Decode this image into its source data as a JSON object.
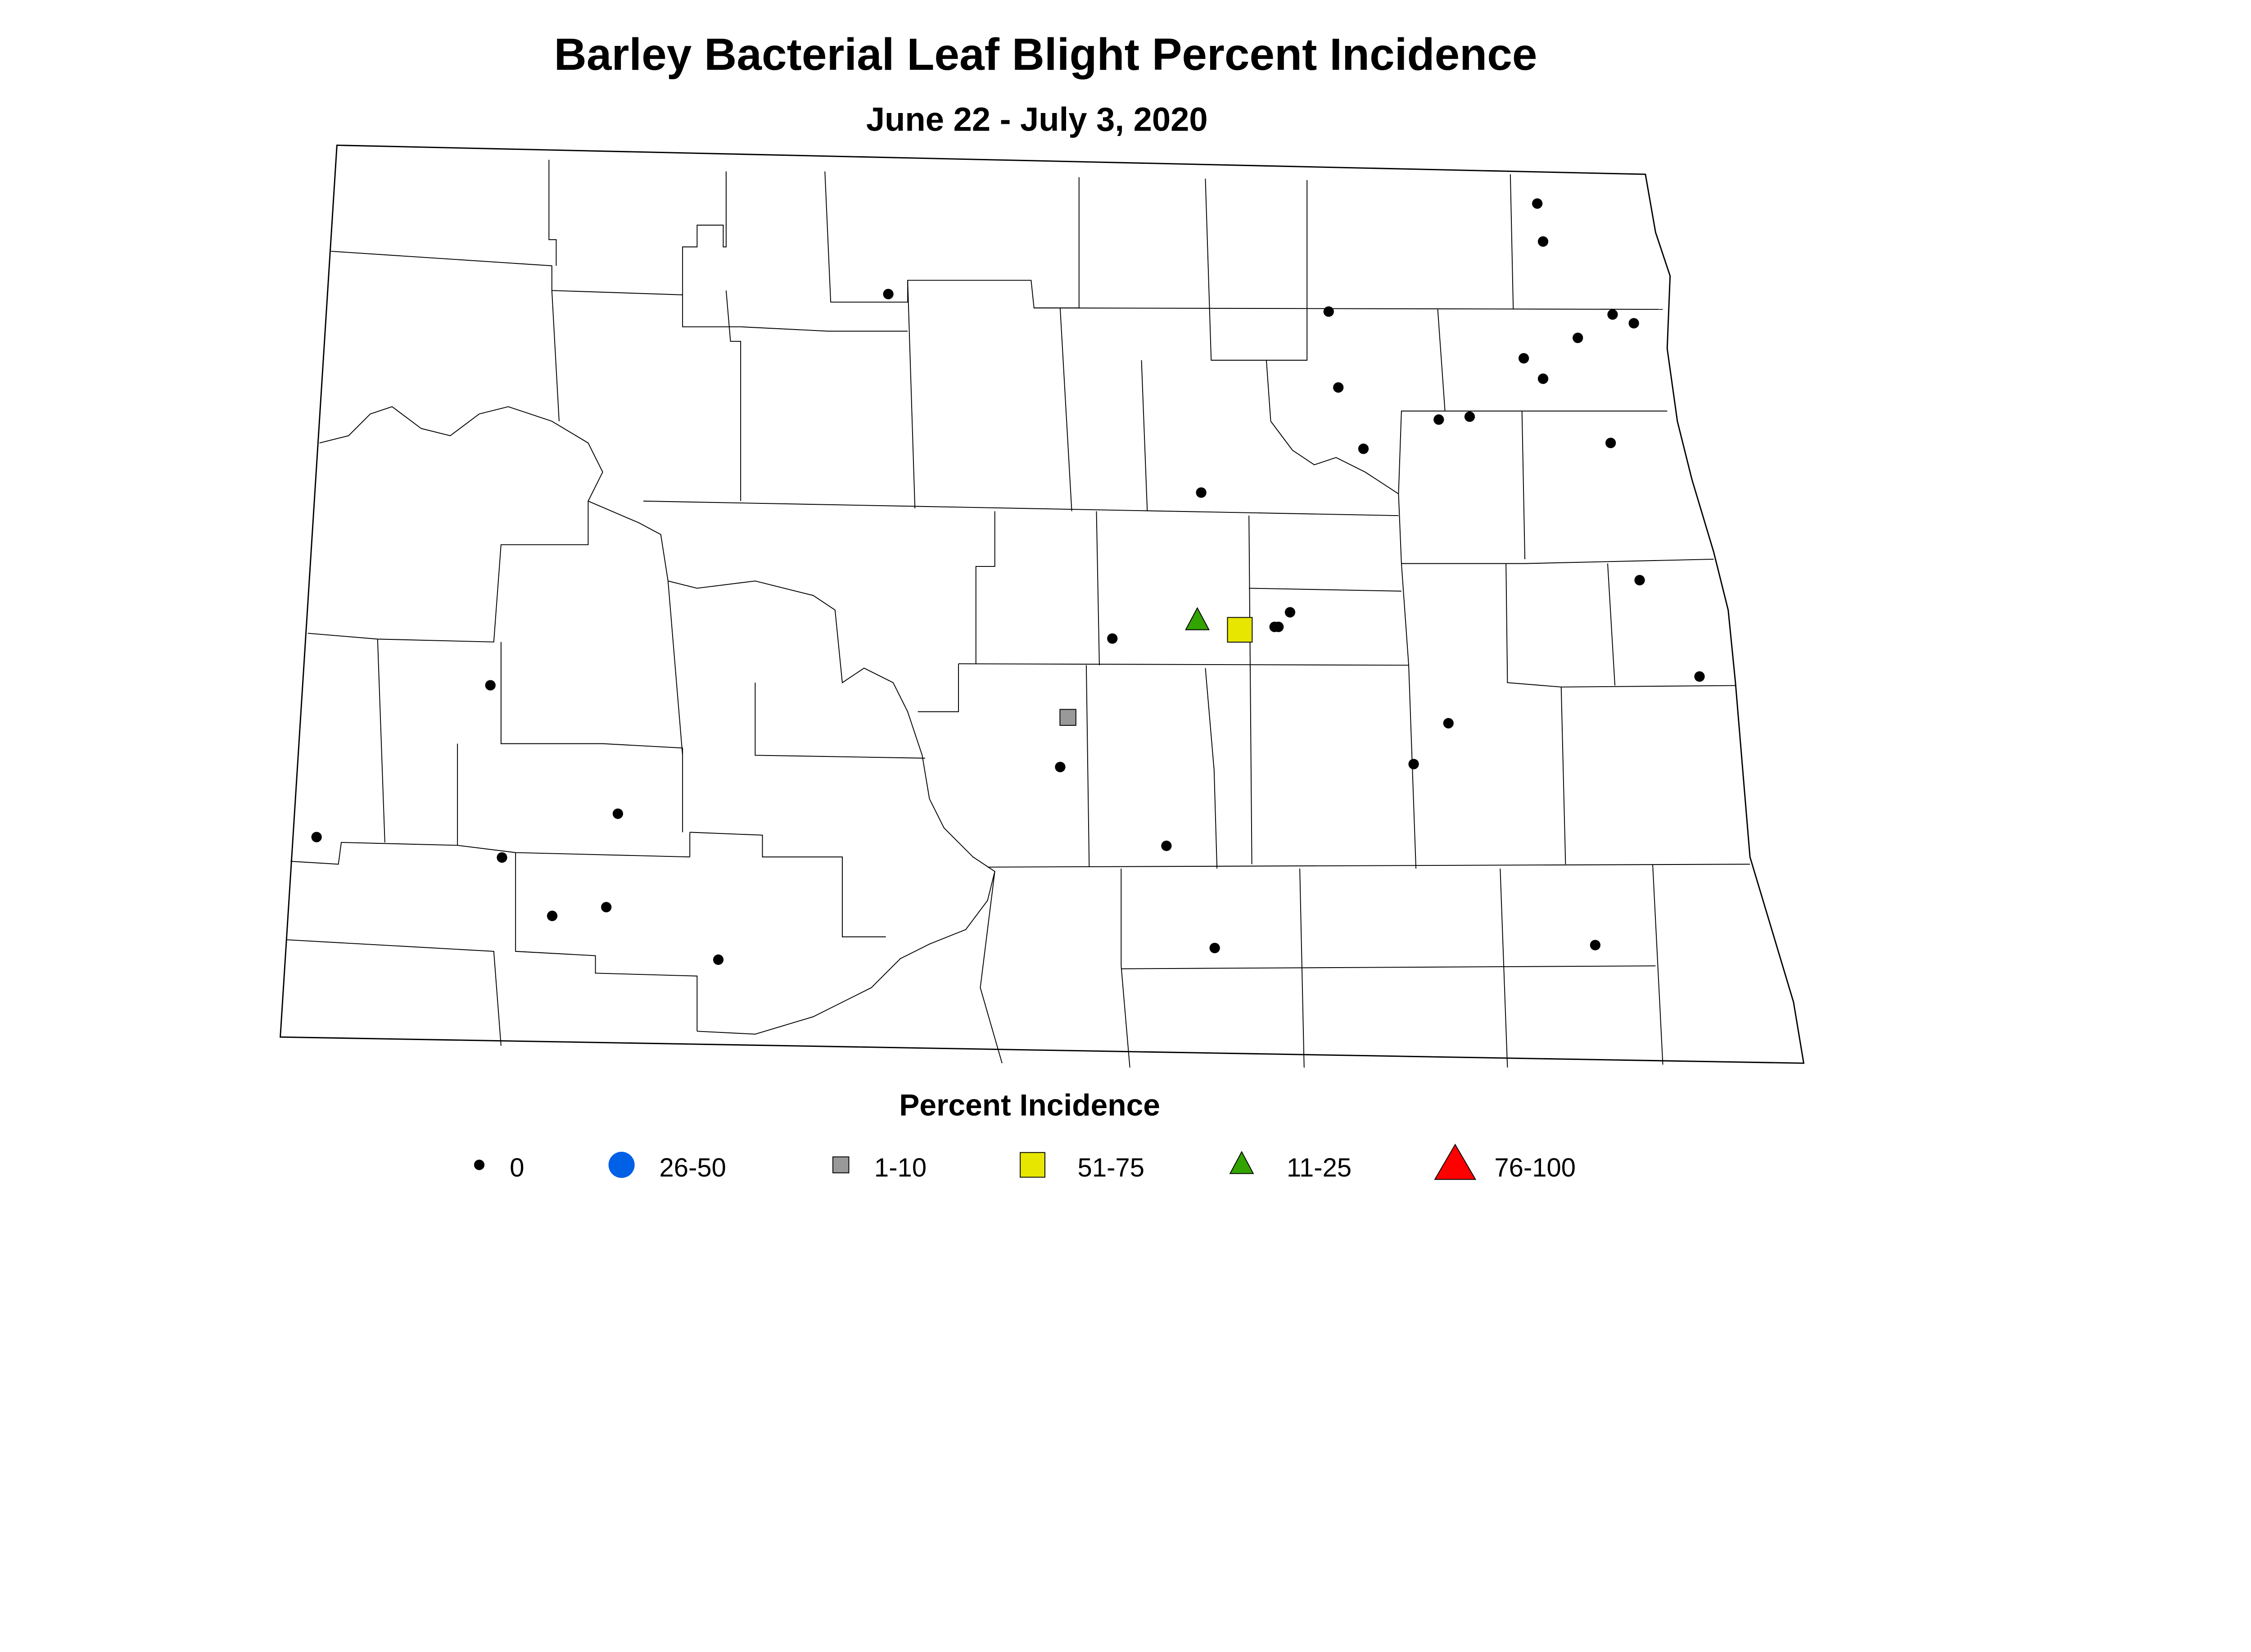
{
  "chart_data": {
    "type": "scatter",
    "title": "Barley Bacterial Leaf Blight Percent Incidence",
    "subtitle": "June 22 - July 3, 2020",
    "legend": {
      "title": "Percent Incidence",
      "placement": "bottom",
      "entries": [
        {
          "label": "0",
          "symbol": "dot",
          "color": "#000000"
        },
        {
          "label": "26-50",
          "symbol": "circle",
          "color": "#0060E6"
        },
        {
          "label": "1-10",
          "symbol": "square-small",
          "color": "#999999"
        },
        {
          "label": "51-75",
          "symbol": "square",
          "color": "#E6E600"
        },
        {
          "label": "11-25",
          "symbol": "triangle",
          "color": "#33A300"
        },
        {
          "label": "76-100",
          "symbol": "triangle-large",
          "color": "#FF0000"
        }
      ]
    },
    "points": [
      {
        "lon": -97.67,
        "lat": 48.85,
        "category": "0"
      },
      {
        "lon": -97.64,
        "lat": 48.72,
        "category": "0"
      },
      {
        "lon": -101.03,
        "lat": 48.54,
        "category": "0"
      },
      {
        "lon": -98.75,
        "lat": 48.48,
        "category": "0"
      },
      {
        "lon": -97.28,
        "lat": 48.47,
        "category": "0"
      },
      {
        "lon": -97.17,
        "lat": 48.44,
        "category": "0"
      },
      {
        "lon": -97.46,
        "lat": 48.39,
        "category": "0"
      },
      {
        "lon": -97.74,
        "lat": 48.32,
        "category": "0"
      },
      {
        "lon": -97.64,
        "lat": 48.25,
        "category": "0"
      },
      {
        "lon": -98.7,
        "lat": 48.22,
        "category": "0"
      },
      {
        "lon": -98.18,
        "lat": 48.11,
        "category": "0"
      },
      {
        "lon": -98.02,
        "lat": 48.12,
        "category": "0"
      },
      {
        "lon": -97.29,
        "lat": 48.03,
        "category": "0"
      },
      {
        "lon": -98.57,
        "lat": 48.01,
        "category": "0"
      },
      {
        "lon": -99.41,
        "lat": 47.86,
        "category": "0"
      },
      {
        "lon": -97.14,
        "lat": 47.56,
        "category": "0"
      },
      {
        "lon": -99.87,
        "lat": 47.36,
        "category": "0"
      },
      {
        "lon": -99.19,
        "lat": 47.4,
        "category": "0"
      },
      {
        "lon": -99.03,
        "lat": 47.4,
        "category": "0"
      },
      {
        "lon": -99.01,
        "lat": 47.4,
        "category": "0"
      },
      {
        "lon": -98.95,
        "lat": 47.45,
        "category": "0"
      },
      {
        "lon": -96.83,
        "lat": 47.23,
        "category": "0"
      },
      {
        "lon": -103.09,
        "lat": 47.2,
        "category": "0"
      },
      {
        "lon": -98.13,
        "lat": 47.07,
        "category": "0"
      },
      {
        "lon": -98.31,
        "lat": 46.93,
        "category": "0"
      },
      {
        "lon": -100.14,
        "lat": 46.92,
        "category": "0"
      },
      {
        "lon": -102.43,
        "lat": 46.76,
        "category": "0"
      },
      {
        "lon": -103.99,
        "lat": 46.68,
        "category": "0"
      },
      {
        "lon": -99.59,
        "lat": 46.65,
        "category": "0"
      },
      {
        "lon": -103.03,
        "lat": 46.61,
        "category": "0"
      },
      {
        "lon": -102.49,
        "lat": 46.44,
        "category": "0"
      },
      {
        "lon": -102.77,
        "lat": 46.41,
        "category": "0"
      },
      {
        "lon": -101.91,
        "lat": 46.26,
        "category": "0"
      },
      {
        "lon": -99.34,
        "lat": 46.3,
        "category": "0"
      },
      {
        "lon": -97.37,
        "lat": 46.31,
        "category": "0"
      },
      {
        "lon": -100.1,
        "lat": 47.09,
        "category": "1-10"
      },
      {
        "lon": -99.21,
        "lat": 47.39,
        "category": "51-75"
      },
      {
        "lon": -99.43,
        "lat": 47.42,
        "category": "11-25"
      }
    ]
  }
}
